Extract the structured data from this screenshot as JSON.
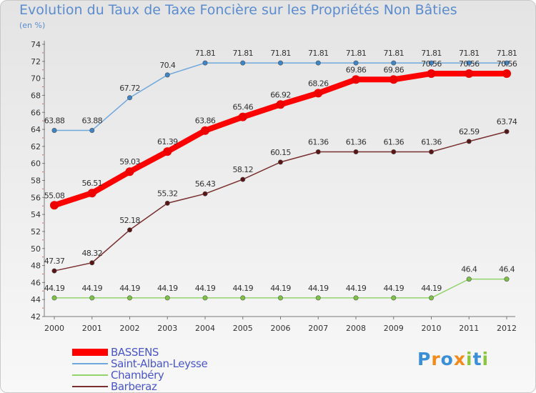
{
  "header": {
    "title": "Evolution du Taux de Taxe Foncière sur les Propriétés Non Bâties",
    "subtitle": "(en %)"
  },
  "chart_data": {
    "type": "line",
    "title": "Evolution du Taux de Taxe Foncière sur les Propriétés Non Bâties",
    "ylabel": "(en %)",
    "xlabel": "",
    "categories": [
      "2000",
      "2001",
      "2002",
      "2003",
      "2004",
      "2005",
      "2006",
      "2007",
      "2008",
      "2009",
      "2010",
      "2011",
      "2012"
    ],
    "ylim": [
      42,
      74
    ],
    "yticks": [
      "42",
      "44",
      "46",
      "48",
      "50",
      "52",
      "54",
      "56",
      "58",
      "60",
      "62",
      "64",
      "66",
      "68",
      "70",
      "72",
      "74"
    ],
    "grid": false,
    "legend_position": "bottom-left",
    "series": [
      {
        "name": "Saint-Alban-Leysse",
        "color": "#6fa8dc",
        "marker": "#3d85c6",
        "values": [
          63.88,
          63.88,
          67.72,
          70.4,
          71.81,
          71.81,
          71.81,
          71.81,
          71.81,
          71.81,
          71.81,
          71.81,
          71.81
        ],
        "labels": [
          "63.88",
          "63.88",
          "67.72",
          "70.4",
          "71.81",
          "71.81",
          "71.81",
          "71.81",
          "71.81",
          "71.81",
          "71.81",
          "71.81",
          "71.81"
        ]
      },
      {
        "name": "Barberaz",
        "color": "#7a3030",
        "marker": "#5a1414",
        "values": [
          47.37,
          48.32,
          52.18,
          55.32,
          56.43,
          58.12,
          60.15,
          61.36,
          61.36,
          61.36,
          61.36,
          62.59,
          63.74
        ],
        "labels": [
          "47.37",
          "48.32",
          "52.18",
          "55.32",
          "56.43",
          "58.12",
          "60.15",
          "61.36",
          "61.36",
          "61.36",
          "61.36",
          "62.59",
          "63.74"
        ]
      },
      {
        "name": "Chambéry",
        "color": "#93d36b",
        "marker": "#7cc243",
        "values": [
          44.19,
          44.19,
          44.19,
          44.19,
          44.19,
          44.19,
          44.19,
          44.19,
          44.19,
          44.19,
          44.19,
          46.4,
          46.4
        ],
        "labels": [
          "44.19",
          "44.19",
          "44.19",
          "44.19",
          "44.19",
          "44.19",
          "44.19",
          "44.19",
          "44.19",
          "44.19",
          "44.19",
          "46.4",
          "46.4"
        ]
      },
      {
        "name": "BASSENS",
        "color": "#ff0000",
        "marker": "#ee0000",
        "values": [
          55.08,
          56.51,
          59.03,
          61.39,
          63.86,
          65.46,
          66.92,
          68.26,
          69.86,
          69.86,
          70.56,
          70.56,
          70.56
        ],
        "labels": [
          "55.08",
          "56.51",
          "59.03",
          "61.39",
          "63.86",
          "65.46",
          "66.92",
          "68.26",
          "69.86",
          "69.86",
          "70.56",
          "70.56",
          "70.56"
        ]
      }
    ]
  },
  "legend": [
    {
      "label": "BASSENS",
      "color": "#ff0000"
    },
    {
      "label": "Saint-Alban-Leysse",
      "color": "#6fa8dc"
    },
    {
      "label": "Chambéry",
      "color": "#93d36b"
    },
    {
      "label": "Barberaz",
      "color": "#7a3030"
    }
  ],
  "logo": {
    "text": "Proxiti",
    "letters": [
      "P",
      "r",
      "o",
      "x",
      "i",
      "t",
      "i"
    ],
    "colors": [
      "#3b8fd6",
      "#f28a1c",
      "#3b8fd6",
      "#f28a1c",
      "#8cc63f",
      "#3b8fd6",
      "#8cc63f"
    ]
  }
}
